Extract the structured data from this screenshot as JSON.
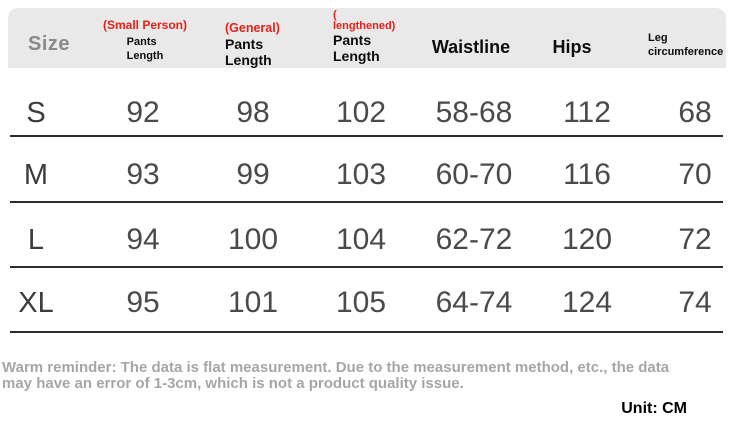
{
  "colors": {
    "accent_red": "#e32119",
    "header_bg": "#e9e9e9",
    "divider": "#2c2c2c",
    "value_text": "#4a4a4a",
    "note_text": "#a6a6a6"
  },
  "header": {
    "size": "Size",
    "col1": {
      "tag": "(Small Person)",
      "label": "Pants\nLength"
    },
    "col2": {
      "tag": "(General)",
      "label": "Pants\nLength"
    },
    "col3": {
      "tag": "(\nlengthened)",
      "label": "Pants\nLength"
    },
    "col4": "Waistline",
    "col5": "Hips",
    "col6": "Leg\ncircumference"
  },
  "table": {
    "rows": [
      {
        "size": "S",
        "values": [
          "92",
          "98",
          "102",
          "58-68",
          "112",
          "68"
        ]
      },
      {
        "size": "M",
        "values": [
          "93",
          "99",
          "103",
          "60-70",
          "116",
          "70"
        ]
      },
      {
        "size": "L",
        "values": [
          "94",
          "100",
          "104",
          "62-72",
          "120",
          "72"
        ]
      },
      {
        "size": "XL",
        "values": [
          "95",
          "101",
          "105",
          "64-74",
          "124",
          "74"
        ]
      }
    ]
  },
  "footer": {
    "reminder": "Warm reminder: The data is flat measurement. Due to the measurement method, etc., the data\nmay have an error of 1-3cm, which is not a product quality issue.",
    "unit": "Unit: CM"
  },
  "chart_data": {
    "type": "table",
    "columns": [
      "Size",
      "(Small Person) Pants Length",
      "(General) Pants Length",
      "(lengthened) Pants Length",
      "Waistline",
      "Hips",
      "Leg circumference"
    ],
    "rows": [
      [
        "S",
        "92",
        "98",
        "102",
        "58-68",
        "112",
        "68"
      ],
      [
        "M",
        "93",
        "99",
        "103",
        "60-70",
        "116",
        "70"
      ],
      [
        "L",
        "94",
        "100",
        "104",
        "62-72",
        "120",
        "72"
      ],
      [
        "XL",
        "95",
        "101",
        "105",
        "64-74",
        "124",
        "74"
      ]
    ],
    "unit": "CM",
    "note": "Warm reminder: The data is flat measurement. Due to the measurement method, etc., the data may have an error of 1-3cm, which is not a product quality issue."
  }
}
